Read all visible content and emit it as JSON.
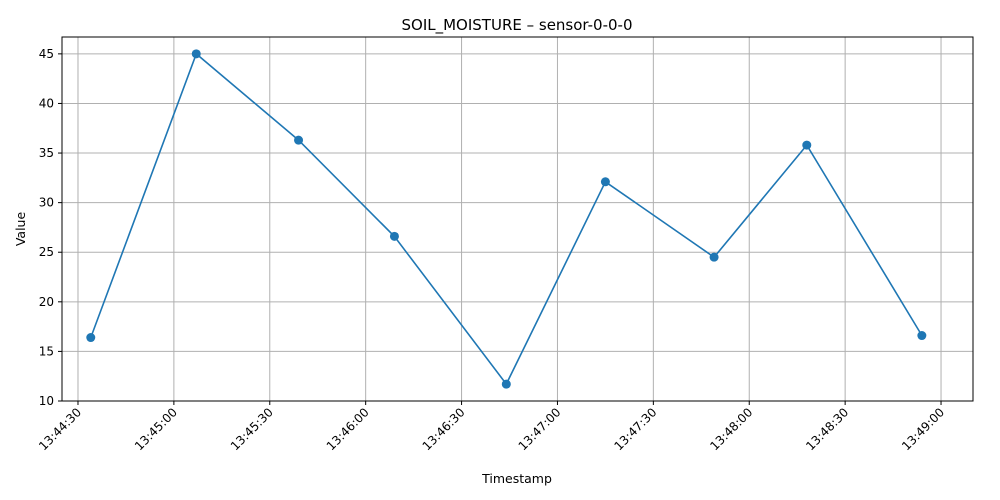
{
  "chart_data": {
    "type": "line",
    "title": "SOIL_MOISTURE – sensor-0-0-0",
    "xlabel": "Timestamp",
    "ylabel": "Value",
    "x_type": "time",
    "xlim": [
      "13:44:25",
      "13:49:10"
    ],
    "ylim": [
      10,
      46.7
    ],
    "x_ticks": [
      "13:44:30",
      "13:45:00",
      "13:45:30",
      "13:46:00",
      "13:46:30",
      "13:47:00",
      "13:47:30",
      "13:48:00",
      "13:48:30",
      "13:49:00"
    ],
    "y_ticks": [
      10,
      15,
      20,
      25,
      30,
      35,
      40,
      45
    ],
    "grid": true,
    "color": "#1f77b4",
    "series": [
      {
        "x": [
          "13:44:34",
          "13:45:07",
          "13:45:39",
          "13:46:09",
          "13:46:44",
          "13:47:15",
          "13:47:49",
          "13:48:18",
          "13:48:54"
        ],
        "y": [
          16.4,
          45.0,
          36.3,
          26.6,
          11.7,
          32.1,
          24.5,
          35.8,
          16.6
        ]
      }
    ]
  }
}
